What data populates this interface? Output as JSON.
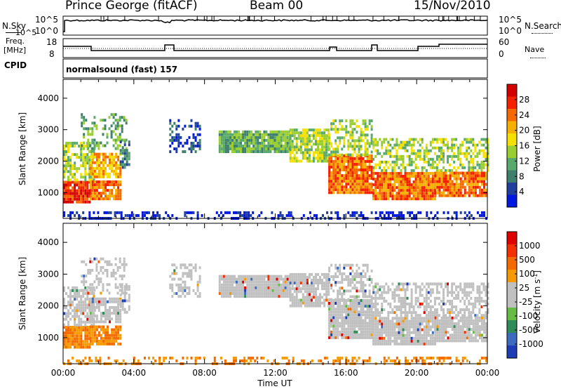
{
  "header": {
    "station": "Prince George (fitACF)",
    "beam": "Beam 00",
    "date": "15/Nov/2010"
  },
  "summary_panel": {
    "nsky_label": "N.Sky",
    "nsearch_label": "N.Search",
    "noise_ticks_left": [
      "10^5",
      "10^0"
    ],
    "noise_ticks_right": [
      "10^5",
      "10^0"
    ],
    "freq_label_line1": "Freq.",
    "freq_label_line2": "[MHz]",
    "freq_ticks": [
      "18",
      "8"
    ],
    "nave_label": "Nave",
    "nave_ticks": [
      "60",
      "0"
    ],
    "cpid_label": "CPID",
    "cpid_text": "normalsound (fast) 157"
  },
  "chart_data": [
    {
      "type": "heatmap",
      "name": "power",
      "ylabel": "Slant Range [km]",
      "yticks": [
        "1000",
        "2000",
        "3000",
        "4000"
      ],
      "ylim": [
        180,
        4600
      ],
      "colorbar_label": "Power [dB]",
      "colorbar_ticks": [
        "28",
        "24",
        "20",
        "16",
        "12",
        "8",
        "4"
      ],
      "colors": [
        "#0018e0",
        "#21409b",
        "#3e7f6e",
        "#5aa96c",
        "#9acd32",
        "#f5e000",
        "#f5b000",
        "#f56a00",
        "#f52000",
        "#d40000"
      ]
    },
    {
      "type": "heatmap",
      "name": "velocity",
      "ylabel": "Slant Range [km]",
      "yticks": [
        "1000",
        "2000",
        "3000",
        "4000"
      ],
      "ylim": [
        180,
        4600
      ],
      "xlabel": "Time UT",
      "xticks": [
        "00:00",
        "04:00",
        "08:00",
        "12:00",
        "16:00",
        "20:00",
        "00:00"
      ],
      "colorbar_label": "Velocity [m s",
      "colorbar_label_sup": "-1",
      "colorbar_label_end": "]",
      "colorbar_ticks": [
        "1000",
        "500",
        "100",
        "25",
        "-25",
        "-100",
        "-500",
        "-1000"
      ],
      "colors": [
        "#1e3cb4",
        "#3d6bc0",
        "#2f8b57",
        "#66bb44",
        "#c0c0c0",
        "#c0c0c0",
        "#f59a00",
        "#f56a00",
        "#f53000",
        "#e00000"
      ]
    }
  ]
}
